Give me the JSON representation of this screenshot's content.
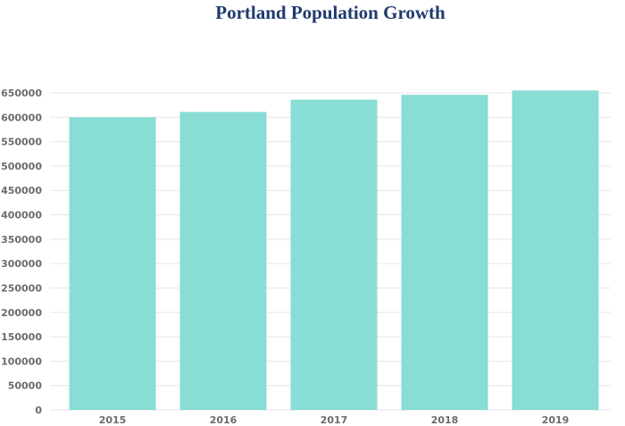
{
  "chart_data": {
    "type": "bar",
    "title": "Portland Population Growth",
    "xlabel": "",
    "ylabel": "",
    "categories": [
      "2015",
      "2016",
      "2017",
      "2018",
      "2019"
    ],
    "values": [
      600000,
      611000,
      636000,
      646000,
      655000
    ],
    "ylim": [
      0,
      650000
    ],
    "yticks": [
      "0",
      "50000",
      "100000",
      "150000",
      "200000",
      "250000",
      "300000",
      "350000",
      "400000",
      "450000",
      "500000",
      "550000",
      "600000",
      "650000"
    ],
    "grid": true,
    "legend": "none",
    "bar_color": "#88ddd4",
    "grid_color": "#e6e6e6",
    "tick_color": "#6b6b6b",
    "title_color": "#1f3a6e"
  }
}
